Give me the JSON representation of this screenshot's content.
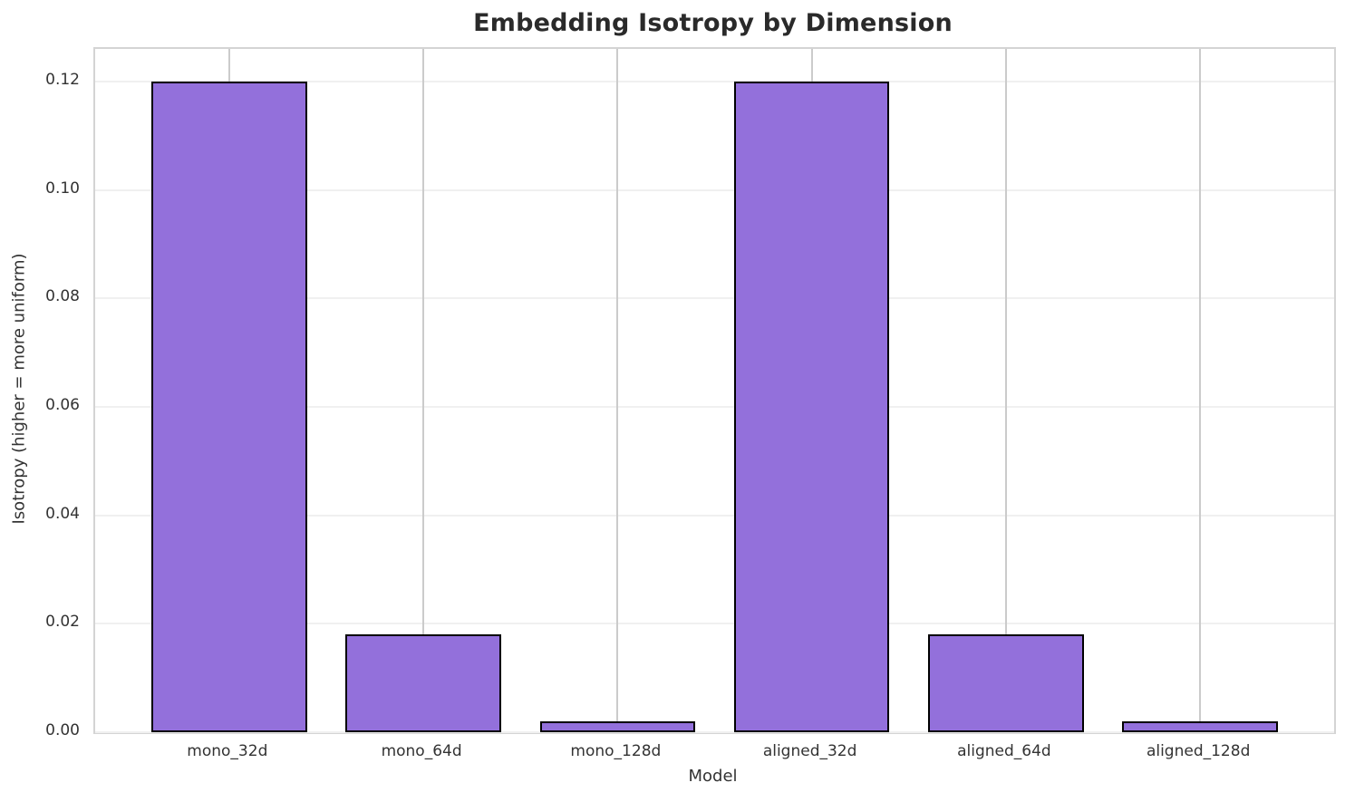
{
  "chart_data": {
    "type": "bar",
    "title": "Embedding Isotropy by Dimension",
    "xlabel": "Model",
    "ylabel": "Isotropy (higher = more uniform)",
    "categories": [
      "mono_32d",
      "mono_64d",
      "mono_128d",
      "aligned_32d",
      "aligned_64d",
      "aligned_128d"
    ],
    "values": [
      0.12,
      0.018,
      0.002,
      0.12,
      0.018,
      0.002
    ],
    "ylim": [
      0,
      0.126
    ],
    "yticks": [
      0.0,
      0.02,
      0.04,
      0.06,
      0.08,
      0.1,
      0.12
    ],
    "ytick_labels": [
      "0.00",
      "0.02",
      "0.04",
      "0.06",
      "0.08",
      "0.10",
      "0.12"
    ],
    "grid": true,
    "legend": false,
    "bar_color": "#9370DB",
    "bar_edge_color": "#000000",
    "title_color": "#2a2a2a",
    "tick_color": "#333333"
  }
}
